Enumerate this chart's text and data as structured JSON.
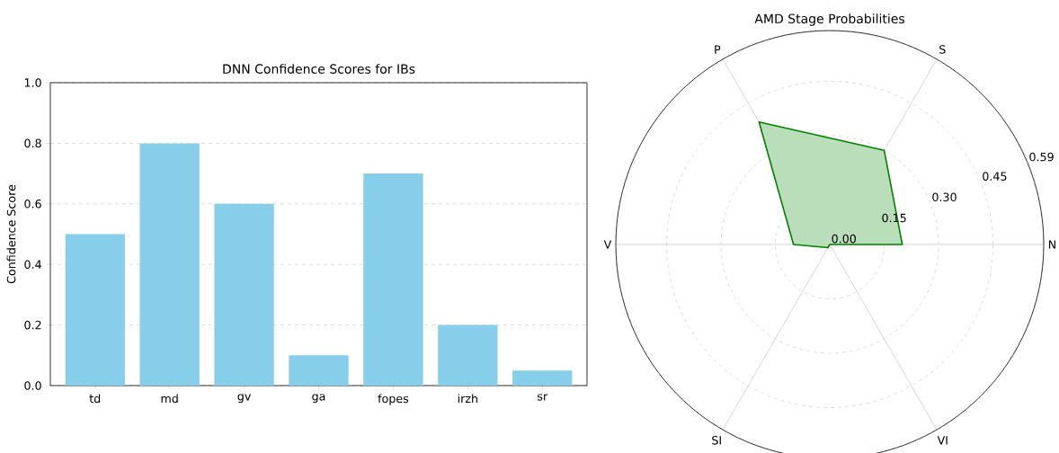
{
  "chart_data": [
    {
      "type": "bar",
      "title": "DNN Confidence Scores for IBs",
      "ylabel": "Confidence Score",
      "categories": [
        "td",
        "md",
        "gv",
        "ga",
        "fopes",
        "irzh",
        "sr"
      ],
      "values": [
        0.5,
        0.8,
        0.6,
        0.1,
        0.7,
        0.2,
        0.05
      ],
      "color": "#87ceeb",
      "ylim": [
        0,
        1
      ],
      "yticks": [
        {
          "value": 0,
          "label": "0.0"
        },
        {
          "value": 0.2,
          "label": "0.2"
        },
        {
          "value": 0.4,
          "label": "0.4"
        },
        {
          "value": 0.6,
          "label": "0.6"
        },
        {
          "value": 0.8,
          "label": "0.8"
        },
        {
          "value": 1,
          "label": "1.0"
        }
      ],
      "grid": "y"
    },
    {
      "type": "radar",
      "title": "AMD Stage Probabilities",
      "categories": [
        "S",
        "N",
        "VI",
        "SI",
        "V",
        "P"
      ],
      "series": [
        {
          "color": "#008000",
          "values": [
            0.3,
            0.2,
            0.0,
            0.01,
            0.1,
            0.39
          ]
        }
      ],
      "ylim": [
        0,
        0.59
      ],
      "yticks": [
        {
          "value": 0,
          "label": "0.00"
        },
        {
          "value": 0.15,
          "label": "0.15"
        },
        {
          "value": 0.3,
          "label": "0.30"
        },
        {
          "value": 0.45,
          "label": "0.45"
        },
        {
          "value": 0.59,
          "label": "0.59"
        }
      ],
      "grid": true
    }
  ]
}
